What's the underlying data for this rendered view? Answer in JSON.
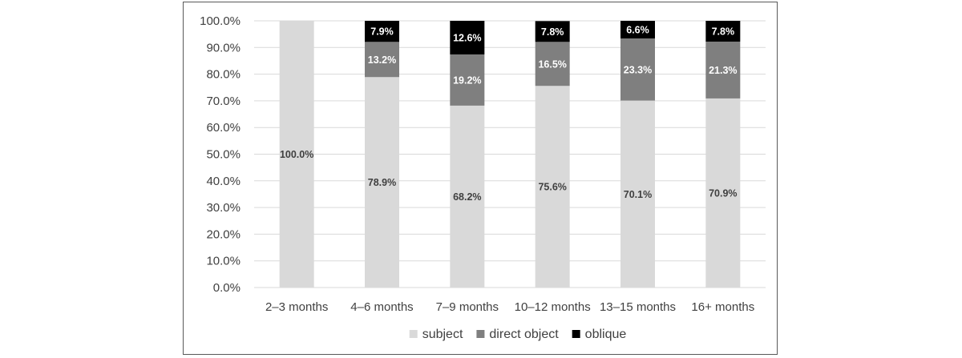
{
  "chart_data": {
    "type": "bar",
    "stacked": true,
    "categories": [
      "2–3 months",
      "4–6 months",
      "7–9 months",
      "10–12 months",
      "13–15 months",
      "16+ months"
    ],
    "series": [
      {
        "name": "subject",
        "color": "#d9d9d9",
        "label_color": "#404040",
        "values": [
          100.0,
          78.9,
          68.2,
          75.6,
          70.1,
          70.9
        ]
      },
      {
        "name": "direct object",
        "color": "#7f7f7f",
        "label_color": "#ffffff",
        "values": [
          0,
          13.2,
          19.2,
          16.5,
          23.3,
          21.3
        ]
      },
      {
        "name": "oblique",
        "color": "#000000",
        "label_color": "#ffffff",
        "values": [
          0,
          7.9,
          12.6,
          7.8,
          6.6,
          7.8
        ]
      }
    ],
    "value_labels": [
      [
        "100.0%",
        "78.9%",
        "68.2%",
        "75.6%",
        "70.1%",
        "70.9%"
      ],
      [
        "",
        "13.2%",
        "19.2%",
        "16.5%",
        "23.3%",
        "21.3%"
      ],
      [
        "",
        "7.9%",
        "12.6%",
        "7.8%",
        "6.6%",
        "7.8%"
      ]
    ],
    "yticks": [
      "0.0%",
      "10.0%",
      "20.0%",
      "30.0%",
      "40.0%",
      "50.0%",
      "60.0%",
      "70.0%",
      "80.0%",
      "90.0%",
      "100.0%"
    ],
    "ylim": [
      0,
      100
    ],
    "grid": true,
    "gridline_color": "#d9d9d9",
    "axis_text_color": "#404040",
    "legend_position": "bottom",
    "title": "",
    "xlabel": "",
    "ylabel": ""
  }
}
